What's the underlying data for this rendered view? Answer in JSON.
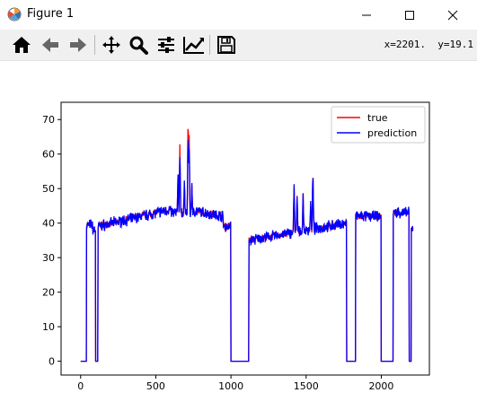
{
  "window": {
    "title": "Figure 1"
  },
  "toolbar": {
    "buttons": [
      {
        "name": "home-icon",
        "tooltip": "Home"
      },
      {
        "name": "back-arrow-icon",
        "tooltip": "Back"
      },
      {
        "name": "forward-arrow-icon",
        "tooltip": "Forward"
      },
      {
        "name": "pan-icon",
        "tooltip": "Pan"
      },
      {
        "name": "zoom-icon",
        "tooltip": "Zoom"
      },
      {
        "name": "subplots-icon",
        "tooltip": "Subplots"
      },
      {
        "name": "edit-curve-icon",
        "tooltip": "Edit"
      },
      {
        "name": "save-icon",
        "tooltip": "Save"
      }
    ],
    "coords_text": "x=2201.  y=19.1"
  },
  "chart_data": {
    "type": "line",
    "xlim": [
      -130,
      2320
    ],
    "ylim": [
      -4,
      75
    ],
    "xticks": [
      0,
      500,
      1000,
      1500,
      2000
    ],
    "yticks": [
      0,
      10,
      20,
      30,
      40,
      50,
      60,
      70
    ],
    "grid": false,
    "legend_position": "top-right",
    "colors": {
      "true": "#ff0000",
      "prediction": "#0000ff"
    },
    "series": [
      {
        "name": "true",
        "values": []
      },
      {
        "name": "prediction",
        "values": []
      }
    ],
    "x_start": 0,
    "x_end": 2210
  }
}
